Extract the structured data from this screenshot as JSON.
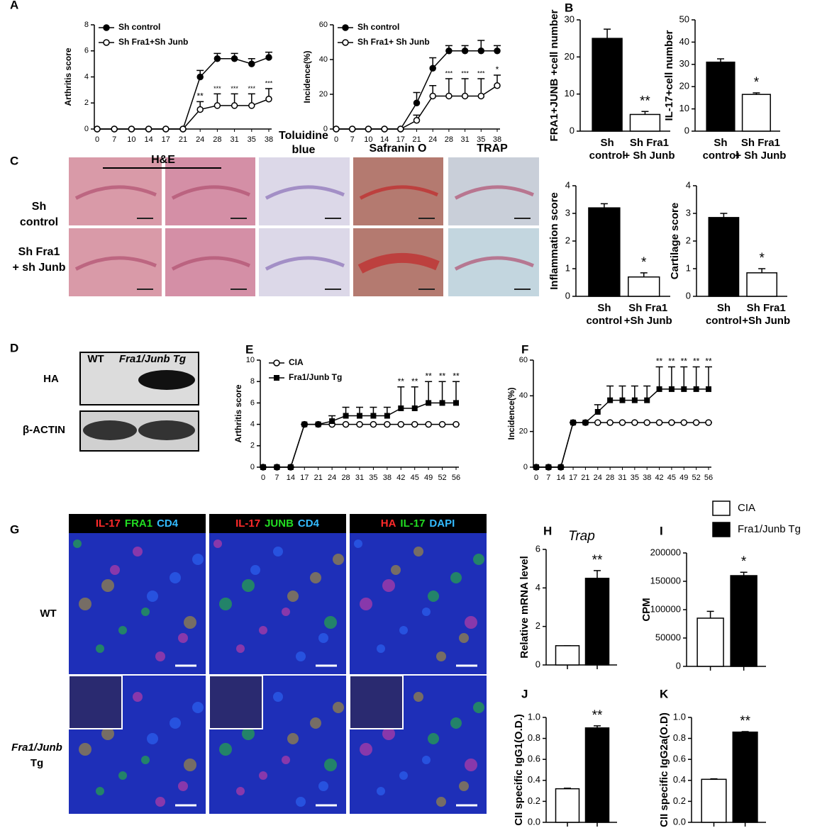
{
  "chart_data": [
    {
      "type": "line",
      "ylabel": "Arthritis score",
      "categories": [
        0,
        7,
        10,
        14,
        17,
        21,
        24,
        28,
        31,
        35,
        38
      ],
      "ylim": [
        0,
        8
      ],
      "yticks": [
        0,
        2,
        4,
        6,
        8
      ],
      "series": [
        {
          "name": "Sh control",
          "color": "#000000",
          "marker": "filled-circle",
          "values": [
            0,
            0,
            0,
            0,
            0,
            0,
            4.0,
            5.4,
            5.4,
            5.0,
            5.5
          ],
          "errors": [
            0,
            0,
            0,
            0,
            0,
            0,
            0.5,
            0.4,
            0.4,
            0.4,
            0.4
          ]
        },
        {
          "name": "Sh Fra1+Sh Junb",
          "color": "#000000",
          "marker": "open-circle",
          "values": [
            0,
            0,
            0,
            0,
            0,
            0,
            1.5,
            1.8,
            1.8,
            1.8,
            2.3
          ],
          "errors": [
            0,
            0,
            0,
            0,
            0,
            0,
            0.6,
            0.9,
            0.9,
            0.9,
            0.8
          ]
        }
      ],
      "annotations": [
        null,
        null,
        null,
        null,
        null,
        null,
        "**",
        "***",
        "***",
        "***",
        "***"
      ]
    },
    {
      "type": "line",
      "ylabel": "Incidence(%)",
      "categories": [
        0,
        7,
        10,
        14,
        17,
        21,
        24,
        28,
        31,
        35,
        38
      ],
      "ylim": [
        0,
        60
      ],
      "yticks": [
        0,
        20,
        40,
        60
      ],
      "series": [
        {
          "name": "Sh control",
          "color": "#000000",
          "marker": "filled-circle",
          "values": [
            0,
            0,
            0,
            0,
            0,
            15,
            35,
            45,
            45,
            45,
            45
          ],
          "errors": [
            0,
            0,
            0,
            0,
            0,
            6,
            6,
            3,
            3,
            6,
            3
          ]
        },
        {
          "name": "Sh Fra1+ Sh Junb",
          "color": "#000000",
          "marker": "open-circle",
          "values": [
            0,
            0,
            0,
            0,
            0,
            5,
            19,
            19,
            19,
            19,
            25
          ],
          "errors": [
            0,
            0,
            0,
            0,
            0,
            3,
            6,
            10,
            10,
            10,
            6
          ]
        }
      ],
      "annotations": [
        null,
        null,
        null,
        null,
        null,
        null,
        null,
        "***",
        "***",
        "***",
        "*"
      ]
    },
    {
      "type": "bar",
      "ylabel": "FRA1+JUNB +cell number",
      "categories": [
        [
          "Sh",
          "control"
        ],
        [
          "Sh Fra1",
          "+ Sh Junb"
        ]
      ],
      "values": [
        25,
        4.5
      ],
      "errors": [
        2.5,
        0.8
      ],
      "colors": [
        "#000000",
        "#ffffff"
      ],
      "ylim": [
        0,
        30
      ],
      "yticks": [
        0,
        10,
        20,
        30
      ],
      "annotations": [
        null,
        "**"
      ]
    },
    {
      "type": "bar",
      "ylabel": "IL-17+cell number",
      "categories": [
        [
          "Sh",
          "control"
        ],
        [
          "Sh Fra1",
          "+ Sh Junb"
        ]
      ],
      "values": [
        31,
        16.5
      ],
      "errors": [
        1.5,
        0.7
      ],
      "colors": [
        "#000000",
        "#ffffff"
      ],
      "ylim": [
        0,
        50
      ],
      "yticks": [
        0,
        10,
        20,
        30,
        40,
        50
      ],
      "annotations": [
        null,
        "*"
      ]
    },
    {
      "type": "bar",
      "ylabel": "Inflammation score",
      "categories": [
        [
          "Sh",
          "control"
        ],
        [
          "Sh Fra1",
          "+Sh Junb"
        ]
      ],
      "values": [
        3.2,
        0.7
      ],
      "errors": [
        0.15,
        0.15
      ],
      "colors": [
        "#000000",
        "#ffffff"
      ],
      "ylim": [
        0,
        4
      ],
      "yticks": [
        0,
        1,
        2,
        3,
        4
      ],
      "annotations": [
        null,
        "*"
      ]
    },
    {
      "type": "bar",
      "ylabel": "Cartilage score",
      "categories": [
        [
          "Sh",
          "control"
        ],
        [
          "Sh Fra1",
          "+Sh Junb"
        ]
      ],
      "values": [
        2.85,
        0.85
      ],
      "errors": [
        0.15,
        0.15
      ],
      "colors": [
        "#000000",
        "#ffffff"
      ],
      "ylim": [
        0,
        4
      ],
      "yticks": [
        0,
        1,
        2,
        3,
        4
      ],
      "annotations": [
        null,
        "*"
      ]
    },
    {
      "type": "line",
      "ylabel": "Arthritis score",
      "categories": [
        0,
        7,
        14,
        17,
        21,
        24,
        28,
        31,
        35,
        38,
        42,
        45,
        49,
        52,
        56
      ],
      "ylim": [
        0,
        10
      ],
      "yticks": [
        0,
        2,
        4,
        6,
        8,
        10
      ],
      "series": [
        {
          "name": "CIA",
          "color": "#000000",
          "marker": "open-circle",
          "values": [
            0,
            0,
            0,
            4,
            4,
            4,
            4,
            4,
            4,
            4,
            4,
            4,
            4,
            4,
            4
          ],
          "errors": [
            0,
            0,
            0,
            0,
            0,
            0,
            0,
            0,
            0,
            0,
            0,
            0,
            0,
            0,
            0
          ]
        },
        {
          "name": "Fra1/Junb Tg",
          "color": "#000000",
          "marker": "filled-square",
          "values": [
            0,
            0,
            0,
            4,
            4,
            4.3,
            4.8,
            4.8,
            4.8,
            4.8,
            5.5,
            5.5,
            6,
            6,
            6
          ],
          "errors": [
            0,
            0,
            0,
            0,
            0,
            0.5,
            0.8,
            0.8,
            0.8,
            0.8,
            2,
            2,
            2,
            2,
            2
          ]
        }
      ],
      "annotations": [
        null,
        null,
        null,
        null,
        null,
        null,
        null,
        null,
        null,
        null,
        "**",
        "**",
        "**",
        "**",
        "**"
      ]
    },
    {
      "type": "line",
      "ylabel": "Incidence(%)",
      "categories": [
        0,
        7,
        14,
        17,
        21,
        24,
        28,
        31,
        35,
        38,
        42,
        45,
        49,
        52,
        56
      ],
      "ylim": [
        0,
        60
      ],
      "yticks": [
        0,
        20,
        40,
        60
      ],
      "series": [
        {
          "name": null,
          "color": "#000000",
          "marker": "open-circle",
          "values": [
            0,
            0,
            0,
            25,
            25,
            25,
            25,
            25,
            25,
            25,
            25,
            25,
            25,
            25,
            25
          ],
          "errors": [
            0,
            0,
            0,
            0,
            0,
            0,
            0,
            0,
            0,
            0,
            0,
            0,
            0,
            0,
            0
          ]
        },
        {
          "name": null,
          "color": "#000000",
          "marker": "filled-square",
          "values": [
            0,
            0,
            0,
            25,
            25,
            31,
            37.5,
            37.5,
            37.5,
            37.5,
            43.75,
            43.75,
            43.75,
            43.75,
            43.75
          ],
          "errors": [
            0,
            0,
            0,
            0,
            0,
            4,
            8,
            8,
            8,
            8,
            12.5,
            12.5,
            12.5,
            12.5,
            12.5
          ]
        }
      ],
      "annotations": [
        null,
        null,
        null,
        null,
        null,
        null,
        null,
        null,
        null,
        null,
        "**",
        "**",
        "**",
        "**",
        "**"
      ]
    },
    {
      "type": "bar",
      "title": "Trap",
      "ylabel": "Relative mRNA level",
      "categories": [
        null,
        null
      ],
      "values": [
        1,
        4.5
      ],
      "errors": [
        0,
        0.4
      ],
      "colors": [
        "#ffffff",
        "#000000"
      ],
      "ylim": [
        0,
        6
      ],
      "yticks": [
        0,
        2,
        4,
        6
      ],
      "annotations": [
        null,
        "**"
      ]
    },
    {
      "type": "bar",
      "ylabel": "CPM",
      "categories": [
        null,
        null
      ],
      "values": [
        85000,
        160000
      ],
      "errors": [
        12000,
        6000
      ],
      "colors": [
        "#ffffff",
        "#000000"
      ],
      "ylim": [
        0,
        200000
      ],
      "yticks": [
        0,
        50000,
        100000,
        150000,
        200000
      ],
      "annotations": [
        null,
        "*"
      ]
    },
    {
      "type": "bar",
      "ylabel": "CII specific IgG1(O.D.)",
      "categories": [
        null,
        null
      ],
      "values": [
        0.32,
        0.9
      ],
      "errors": [
        0.005,
        0.02
      ],
      "colors": [
        "#ffffff",
        "#000000"
      ],
      "ylim": [
        0,
        1.0
      ],
      "yticks": [
        {
          "value": 0,
          "label": "0.0"
        },
        0.2,
        0.4,
        0.6,
        0.8,
        {
          "value": 1,
          "label": "1.0"
        }
      ],
      "annotations": [
        null,
        "**"
      ]
    },
    {
      "type": "bar",
      "ylabel": "CII specific IgG2a(O.D)",
      "categories": [
        null,
        null
      ],
      "values": [
        0.41,
        0.86
      ],
      "errors": [
        0.005,
        0.005
      ],
      "colors": [
        "#ffffff",
        "#000000"
      ],
      "ylim": [
        0,
        1.0
      ],
      "yticks": [
        {
          "value": 0,
          "label": "0.0"
        },
        0.2,
        0.4,
        0.6,
        0.8,
        {
          "value": 1,
          "label": "1.0"
        }
      ],
      "annotations": [
        null,
        "**"
      ]
    }
  ],
  "legend": [
    {
      "name": "CIA",
      "color": "#ffffff"
    },
    {
      "name": "Fra1/Junb Tg",
      "color": "#000000"
    }
  ],
  "panel_labels": [
    "A",
    "B",
    "C",
    "D",
    "E",
    "F",
    "G",
    "H",
    "I",
    "J",
    "K"
  ],
  "histology": {
    "title": "H&E",
    "columns": [
      [
        "Toluidine",
        "blue"
      ],
      [
        "Safranin O"
      ],
      [
        "TRAP"
      ]
    ],
    "rows": [
      [
        "Sh",
        "control"
      ],
      [
        "Sh Fra1",
        "+ sh Junb"
      ]
    ]
  },
  "blot": {
    "columns": [
      "WT",
      "Fra1/Junb Tg"
    ],
    "rows": [
      "HA",
      "β-ACTIN"
    ]
  },
  "immuno": {
    "headers": [
      [
        {
          "text": "IL-17",
          "color": "#ff2a2a"
        },
        {
          "text": "FRA1",
          "color": "#22dd22"
        },
        {
          "text": "CD4",
          "color": "#33bbff"
        }
      ],
      [
        {
          "text": "IL-17",
          "color": "#ff2a2a"
        },
        {
          "text": "JUNB",
          "color": "#22dd22"
        },
        {
          "text": "CD4",
          "color": "#33bbff"
        }
      ],
      [
        {
          "text": "HA",
          "color": "#ff2a2a"
        },
        {
          "text": "IL-17",
          "color": "#22dd22"
        },
        {
          "text": "DAPI",
          "color": "#33bbff"
        }
      ]
    ],
    "rows": [
      [
        "WT"
      ],
      [
        "Fra1/Junb",
        "Tg"
      ]
    ]
  }
}
